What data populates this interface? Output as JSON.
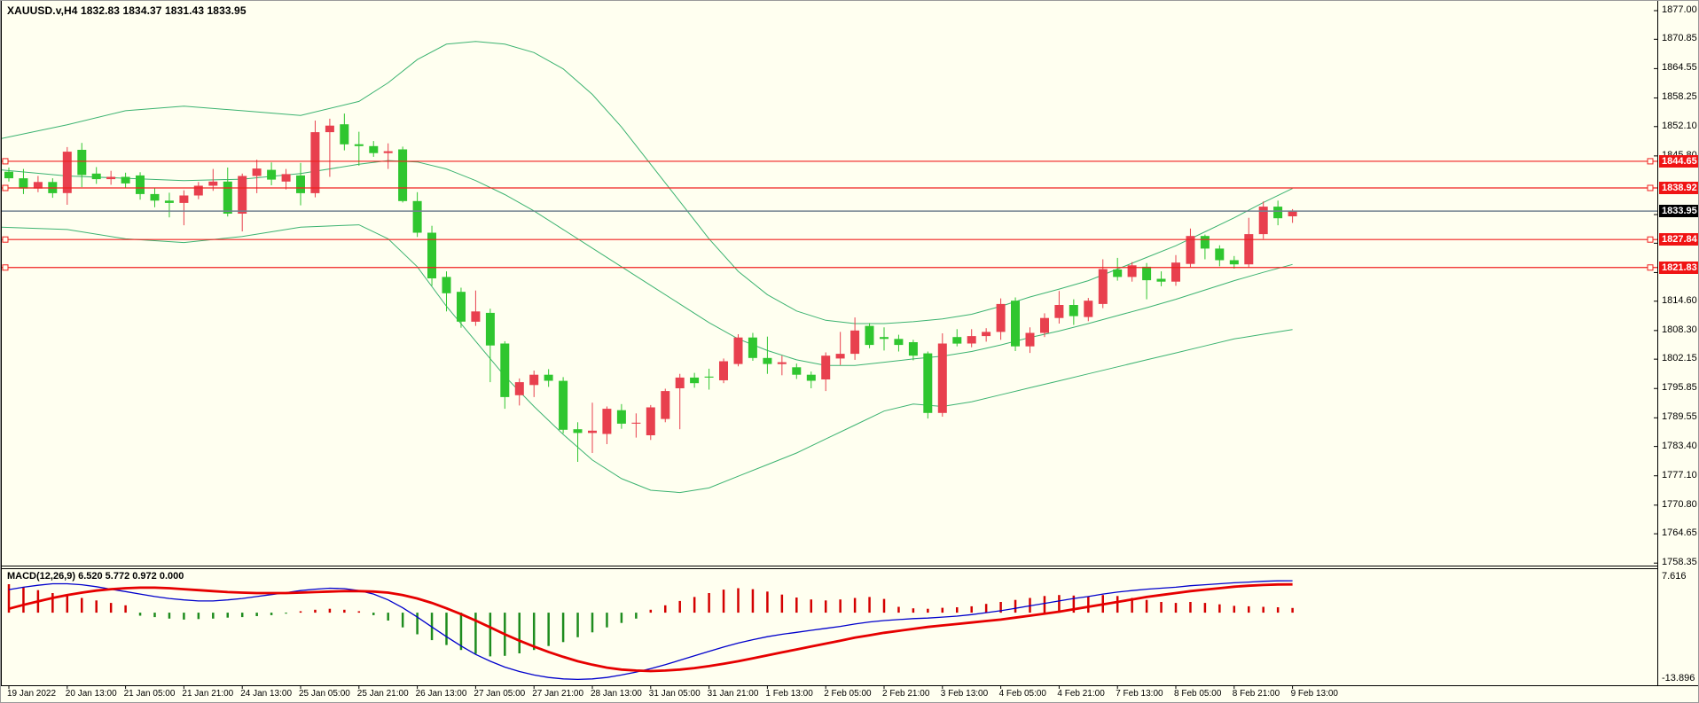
{
  "window_title": "XAUUSD.v,H4",
  "header": {
    "title": "XAUUSD.v,H4  1832.83 1834.37 1831.43 1833.95",
    "ohlc": {
      "open": "1832.83",
      "high": "1834.37",
      "low": "1831.43",
      "close": "1833.95"
    }
  },
  "macd_panel": {
    "label": "MACD(12,26,9) 6.520 5.772 0.972 0.000",
    "axis_top": "7.616",
    "axis_bottom": "-13.896"
  },
  "price_axis": {
    "ticks": [
      {
        "label": "1877.00",
        "value": 1877.0
      },
      {
        "label": "1870.85",
        "value": 1870.85
      },
      {
        "label": "1864.55",
        "value": 1864.55
      },
      {
        "label": "1858.25",
        "value": 1858.25
      },
      {
        "label": "1852.10",
        "value": 1852.1
      },
      {
        "label": "1845.80",
        "value": 1845.8
      },
      {
        "label": "1833.20",
        "value": 1833.2
      },
      {
        "label": "1827.05",
        "value": 1827.05
      },
      {
        "label": "1820.75",
        "value": 1820.75
      },
      {
        "label": "1814.60",
        "value": 1814.6
      },
      {
        "label": "1808.30",
        "value": 1808.3
      },
      {
        "label": "1802.15",
        "value": 1802.15
      },
      {
        "label": "1795.85",
        "value": 1795.85
      },
      {
        "label": "1789.55",
        "value": 1789.55
      },
      {
        "label": "1783.40",
        "value": 1783.4
      },
      {
        "label": "1777.10",
        "value": 1777.1
      },
      {
        "label": "1770.80",
        "value": 1770.8
      },
      {
        "label": "1764.65",
        "value": 1764.65
      },
      {
        "label": "1758.35",
        "value": 1758.35
      }
    ]
  },
  "price_labels": [
    {
      "text": "1844.65",
      "price": 1844.65,
      "type": "line"
    },
    {
      "text": "1838.92",
      "price": 1838.92,
      "type": "line"
    },
    {
      "text": "1833.95",
      "price": 1833.95,
      "type": "current"
    },
    {
      "text": "1827.84",
      "price": 1827.84,
      "type": "line"
    },
    {
      "text": "1821.83",
      "price": 1821.83,
      "type": "line"
    }
  ],
  "time_axis": {
    "labels": [
      "19 Jan 2022",
      "20 Jan 13:00",
      "21 Jan 05:00",
      "21 Jan 21:00",
      "24 Jan 13:00",
      "25 Jan 05:00",
      "25 Jan 21:00",
      "26 Jan 13:00",
      "27 Jan 05:00",
      "27 Jan 21:00",
      "28 Jan 13:00",
      "31 Jan 05:00",
      "31 Jan 21:00",
      "1 Feb 13:00",
      "2 Feb 05:00",
      "2 Feb 21:00",
      "3 Feb 13:00",
      "4 Feb 05:00",
      "4 Feb 21:00",
      "7 Feb 13:00",
      "8 Feb 05:00",
      "8 Feb 21:00",
      "9 Feb 13:00"
    ]
  },
  "colors": {
    "bg": "#fffff0",
    "bull": "#e8404e",
    "bear": "#2fc62f",
    "bollinger": "#3cb371",
    "hline": "#f02020",
    "current_line": "#708090",
    "macd_signal": "#e60000",
    "macd_line": "#0000cc",
    "hist_pos": "#d40000",
    "hist_neg": "#1e8c1e",
    "tag_line_bg": "#f01414",
    "tag_current_bg": "#000000",
    "axis_line": "#000000"
  },
  "chart_data": {
    "type": "candlestick",
    "symbol": "XAUUSD.v",
    "timeframe": "H4",
    "title": "XAUUSD.v,H4",
    "price_range": [
      1758.35,
      1877.0
    ],
    "indicators": [
      "Bollinger Bands",
      "MACD(12,26,9)"
    ],
    "horizontal_lines": [
      1844.65,
      1838.92,
      1827.84,
      1821.83
    ],
    "current_price": 1833.95,
    "ohlc": [
      [
        1842.4,
        1843.3,
        1840.3,
        1841.0
      ],
      [
        1841.0,
        1843.0,
        1837.6,
        1838.8
      ],
      [
        1838.8,
        1841.5,
        1838.0,
        1840.2
      ],
      [
        1840.2,
        1841.0,
        1836.8,
        1837.8
      ],
      [
        1837.8,
        1847.7,
        1835.3,
        1846.7
      ],
      [
        1847.1,
        1848.6,
        1839.1,
        1841.7
      ],
      [
        1842.0,
        1843.4,
        1839.8,
        1840.8
      ],
      [
        1840.8,
        1842.6,
        1839.6,
        1841.3
      ],
      [
        1841.3,
        1842.2,
        1838.9,
        1839.9
      ],
      [
        1841.6,
        1842.3,
        1836.4,
        1837.6
      ],
      [
        1837.6,
        1838.9,
        1834.8,
        1836.2
      ],
      [
        1836.2,
        1837.9,
        1832.6,
        1835.7
      ],
      [
        1835.7,
        1838.4,
        1830.9,
        1837.3
      ],
      [
        1837.3,
        1840.2,
        1836.5,
        1839.4
      ],
      [
        1839.4,
        1843.0,
        1838.3,
        1840.3
      ],
      [
        1840.3,
        1843.3,
        1832.8,
        1833.4
      ],
      [
        1833.4,
        1842.0,
        1829.6,
        1841.5
      ],
      [
        1841.5,
        1845.0,
        1837.8,
        1843.1
      ],
      [
        1842.8,
        1844.4,
        1839.5,
        1840.7
      ],
      [
        1840.3,
        1843.0,
        1838.6,
        1841.9
      ],
      [
        1841.6,
        1844.3,
        1835.2,
        1837.8
      ],
      [
        1837.8,
        1853.4,
        1836.9,
        1850.9
      ],
      [
        1850.9,
        1853.8,
        1841.3,
        1852.3
      ],
      [
        1852.6,
        1854.9,
        1847.0,
        1848.3
      ],
      [
        1848.3,
        1851.0,
        1843.7,
        1847.9
      ],
      [
        1847.9,
        1849.0,
        1845.6,
        1846.4
      ],
      [
        1846.4,
        1848.5,
        1843.0,
        1846.8
      ],
      [
        1847.2,
        1847.8,
        1835.8,
        1836.1
      ],
      [
        1836.1,
        1838.0,
        1828.4,
        1829.3
      ],
      [
        1829.3,
        1830.8,
        1817.9,
        1819.5
      ],
      [
        1819.8,
        1821.0,
        1812.4,
        1816.3
      ],
      [
        1816.6,
        1817.5,
        1808.9,
        1810.2
      ],
      [
        1810.2,
        1816.9,
        1809.3,
        1812.4
      ],
      [
        1812.1,
        1813.0,
        1797.2,
        1805.1
      ],
      [
        1805.5,
        1806.0,
        1791.5,
        1794.0
      ],
      [
        1794.4,
        1798.0,
        1792.2,
        1797.2
      ],
      [
        1796.6,
        1799.7,
        1794.0,
        1798.8
      ],
      [
        1798.8,
        1800.0,
        1796.2,
        1797.5
      ],
      [
        1797.5,
        1798.3,
        1786.2,
        1787.0
      ],
      [
        1787.1,
        1788.6,
        1780.1,
        1786.3
      ],
      [
        1786.3,
        1792.8,
        1782.0,
        1786.8
      ],
      [
        1786.1,
        1792.0,
        1783.9,
        1791.5
      ],
      [
        1791.2,
        1792.5,
        1787.2,
        1788.3
      ],
      [
        1788.3,
        1790.5,
        1785.3,
        1788.5
      ],
      [
        1785.8,
        1792.3,
        1784.8,
        1791.8
      ],
      [
        1789.3,
        1795.8,
        1788.6,
        1795.3
      ],
      [
        1795.9,
        1799.0,
        1787.1,
        1798.2
      ],
      [
        1798.2,
        1799.2,
        1796.0,
        1797.0
      ],
      [
        1798.4,
        1800.1,
        1795.6,
        1798.2
      ],
      [
        1797.6,
        1802.3,
        1797.0,
        1801.7
      ],
      [
        1801.1,
        1807.5,
        1800.6,
        1806.8
      ],
      [
        1806.8,
        1807.8,
        1801.8,
        1802.4
      ],
      [
        1802.4,
        1807.0,
        1799.0,
        1801.1
      ],
      [
        1801.1,
        1802.9,
        1798.7,
        1801.5
      ],
      [
        1800.4,
        1801.2,
        1797.9,
        1798.8
      ],
      [
        1798.8,
        1799.5,
        1795.9,
        1797.5
      ],
      [
        1797.8,
        1803.6,
        1795.3,
        1802.9
      ],
      [
        1802.3,
        1808.0,
        1800.9,
        1803.3
      ],
      [
        1803.3,
        1811.1,
        1802.0,
        1808.3
      ],
      [
        1809.3,
        1809.9,
        1804.5,
        1805.2
      ],
      [
        1806.9,
        1809.0,
        1804.0,
        1806.5
      ],
      [
        1806.5,
        1807.4,
        1803.8,
        1805.2
      ],
      [
        1805.8,
        1806.3,
        1801.9,
        1802.9
      ],
      [
        1803.4,
        1803.8,
        1789.4,
        1790.6
      ],
      [
        1790.6,
        1807.7,
        1789.8,
        1805.5
      ],
      [
        1806.9,
        1808.6,
        1804.9,
        1805.5
      ],
      [
        1805.5,
        1808.6,
        1804.7,
        1807.1
      ],
      [
        1807.1,
        1808.8,
        1805.9,
        1808.0
      ],
      [
        1808.0,
        1815.2,
        1806.3,
        1814.0
      ],
      [
        1814.7,
        1815.4,
        1803.9,
        1804.9
      ],
      [
        1804.9,
        1809.0,
        1803.5,
        1807.8
      ],
      [
        1807.8,
        1812.0,
        1806.9,
        1811.0
      ],
      [
        1811.0,
        1816.8,
        1809.8,
        1813.8
      ],
      [
        1813.8,
        1815.0,
        1809.5,
        1811.4
      ],
      [
        1811.2,
        1815.3,
        1810.3,
        1814.7
      ],
      [
        1814.0,
        1823.6,
        1813.1,
        1821.5
      ],
      [
        1821.4,
        1823.9,
        1819.0,
        1819.8
      ],
      [
        1819.8,
        1823.0,
        1818.8,
        1822.3
      ],
      [
        1822.0,
        1822.8,
        1815.0,
        1819.1
      ],
      [
        1819.4,
        1821.0,
        1817.8,
        1818.8
      ],
      [
        1818.8,
        1824.5,
        1817.9,
        1822.9
      ],
      [
        1822.6,
        1830.2,
        1821.9,
        1828.6
      ],
      [
        1828.6,
        1828.9,
        1823.6,
        1825.9
      ],
      [
        1825.9,
        1826.6,
        1822.1,
        1823.4
      ],
      [
        1823.4,
        1824.3,
        1821.6,
        1822.5
      ],
      [
        1822.5,
        1832.5,
        1821.9,
        1829.0
      ],
      [
        1829.0,
        1836.0,
        1828.0,
        1834.9
      ],
      [
        1834.9,
        1836.2,
        1830.9,
        1832.4
      ],
      [
        1832.83,
        1834.37,
        1831.43,
        1833.95
      ]
    ],
    "bollinger_points": [
      [
        0,
        1849.5,
        1842.8,
        1830.5
      ],
      [
        4,
        1852.5,
        1841.5,
        1830.0
      ],
      [
        8,
        1855.5,
        1841.0,
        1828.0
      ],
      [
        12,
        1856.5,
        1840.5,
        1827.2
      ],
      [
        16,
        1855.5,
        1840.8,
        1828.5
      ],
      [
        20,
        1854.5,
        1842.0,
        1830.5
      ],
      [
        24,
        1857.5,
        1844.0,
        1831.0
      ],
      [
        26,
        1861.5,
        1844.8,
        1828.0
      ],
      [
        28,
        1866.5,
        1844.5,
        1822.0
      ],
      [
        30,
        1869.8,
        1843.0,
        1813.5
      ],
      [
        32,
        1870.4,
        1840.5,
        1806.0
      ],
      [
        34,
        1869.8,
        1837.5,
        1798.5
      ],
      [
        36,
        1868.0,
        1834.0,
        1792.0
      ],
      [
        38,
        1864.5,
        1830.0,
        1786.0
      ],
      [
        40,
        1859.0,
        1826.0,
        1780.5
      ],
      [
        42,
        1852.0,
        1822.0,
        1776.5
      ],
      [
        44,
        1844.0,
        1818.0,
        1774.0
      ],
      [
        46,
        1836.0,
        1814.0,
        1773.5
      ],
      [
        48,
        1828.0,
        1810.0,
        1774.5
      ],
      [
        50,
        1821.0,
        1806.5,
        1777.0
      ],
      [
        52,
        1816.0,
        1804.0,
        1779.5
      ],
      [
        54,
        1812.5,
        1802.0,
        1782.0
      ],
      [
        56,
        1810.5,
        1800.8,
        1785.0
      ],
      [
        58,
        1809.8,
        1800.8,
        1788.0
      ],
      [
        60,
        1809.8,
        1801.5,
        1791.0
      ],
      [
        62,
        1810.2,
        1802.2,
        1792.5
      ],
      [
        64,
        1810.8,
        1802.8,
        1792.0
      ],
      [
        66,
        1811.8,
        1803.8,
        1793.0
      ],
      [
        68,
        1813.5,
        1805.2,
        1794.5
      ],
      [
        70,
        1815.5,
        1806.8,
        1796.0
      ],
      [
        72,
        1817.2,
        1808.2,
        1797.5
      ],
      [
        74,
        1819.0,
        1809.8,
        1799.0
      ],
      [
        76,
        1821.5,
        1811.5,
        1800.5
      ],
      [
        78,
        1824.0,
        1813.2,
        1802.0
      ],
      [
        80,
        1826.5,
        1815.0,
        1803.5
      ],
      [
        82,
        1829.5,
        1817.0,
        1805.0
      ],
      [
        84,
        1832.5,
        1819.0,
        1806.5
      ],
      [
        86,
        1835.8,
        1820.8,
        1807.5
      ],
      [
        88,
        1838.8,
        1822.5,
        1808.5
      ]
    ],
    "macd": {
      "params": "12,26,9",
      "values_text": [
        "6.520",
        "5.772",
        "0.972",
        "0.000"
      ],
      "axis_range": [
        -13.896,
        7.616
      ],
      "line": [
        4.7,
        5.2,
        5.6,
        5.9,
        5.9,
        5.7,
        5.3,
        4.8,
        4.3,
        3.8,
        3.3,
        2.9,
        2.6,
        2.4,
        2.4,
        2.6,
        2.9,
        3.3,
        3.7,
        4.1,
        4.5,
        4.8,
        5.0,
        4.9,
        4.5,
        3.8,
        2.6,
        1.0,
        -0.9,
        -2.9,
        -4.9,
        -6.8,
        -8.5,
        -9.9,
        -11.1,
        -12.0,
        -12.7,
        -13.2,
        -13.5,
        -13.6,
        -13.5,
        -13.2,
        -12.7,
        -12.1,
        -11.4,
        -10.6,
        -9.7,
        -8.8,
        -7.9,
        -7.0,
        -6.2,
        -5.5,
        -4.9,
        -4.4,
        -4.0,
        -3.6,
        -3.2,
        -2.8,
        -2.3,
        -1.9,
        -1.6,
        -1.4,
        -1.2,
        -1.1,
        -0.9,
        -0.7,
        -0.4,
        0.0,
        0.4,
        0.9,
        1.4,
        1.9,
        2.4,
        2.9,
        3.3,
        3.8,
        4.2,
        4.5,
        4.8,
        5.0,
        5.2,
        5.5,
        5.7,
        5.9,
        6.1,
        6.25,
        6.4,
        6.5,
        6.52
      ],
      "signal": [
        0.8,
        1.6,
        2.3,
        3.0,
        3.6,
        4.1,
        4.5,
        4.8,
        5.0,
        5.1,
        5.1,
        5.0,
        4.8,
        4.6,
        4.4,
        4.2,
        4.1,
        4.0,
        4.0,
        4.0,
        4.1,
        4.2,
        4.3,
        4.4,
        4.4,
        4.3,
        4.1,
        3.6,
        2.9,
        2.0,
        0.9,
        -0.3,
        -1.6,
        -3.0,
        -4.4,
        -5.7,
        -6.9,
        -8.0,
        -9.0,
        -9.9,
        -10.6,
        -11.2,
        -11.6,
        -11.8,
        -11.9,
        -11.8,
        -11.6,
        -11.3,
        -10.9,
        -10.4,
        -9.9,
        -9.3,
        -8.7,
        -8.1,
        -7.5,
        -6.9,
        -6.3,
        -5.7,
        -5.1,
        -4.6,
        -4.1,
        -3.7,
        -3.3,
        -2.9,
        -2.6,
        -2.3,
        -2.0,
        -1.7,
        -1.4,
        -1.0,
        -0.6,
        -0.2,
        0.2,
        0.7,
        1.2,
        1.7,
        2.2,
        2.7,
        3.2,
        3.6,
        4.0,
        4.4,
        4.7,
        5.0,
        5.3,
        5.5,
        5.65,
        5.75,
        5.77
      ],
      "hist": [
        5.8,
        5.2,
        4.6,
        4.0,
        3.5,
        3.0,
        2.5,
        2.0,
        1.5,
        -0.6,
        -0.9,
        -1.2,
        -1.4,
        -1.3,
        -1.2,
        -1.0,
        -0.9,
        -0.7,
        -0.5,
        -0.2,
        0.3,
        0.6,
        0.8,
        0.6,
        0.3,
        -0.5,
        -1.6,
        -3.0,
        -4.4,
        -5.6,
        -6.6,
        -7.6,
        -8.4,
        -8.9,
        -8.8,
        -8.3,
        -7.6,
        -6.8,
        -6.0,
        -5.0,
        -4.0,
        -3.0,
        -2.1,
        -1.2,
        0.6,
        1.5,
        2.4,
        3.2,
        4.0,
        4.7,
        5.0,
        4.8,
        4.3,
        3.7,
        3.1,
        2.7,
        2.5,
        2.7,
        3.0,
        3.2,
        2.8,
        1.2,
        0.9,
        0.8,
        1.0,
        1.1,
        1.3,
        1.8,
        2.2,
        2.6,
        3.0,
        3.4,
        3.6,
        3.5,
        3.3,
        3.6,
        3.4,
        3.0,
        2.6,
        2.2,
        2.0,
        2.2,
        2.0,
        1.7,
        1.4,
        1.3,
        1.2,
        1.1,
        0.97
      ]
    }
  }
}
